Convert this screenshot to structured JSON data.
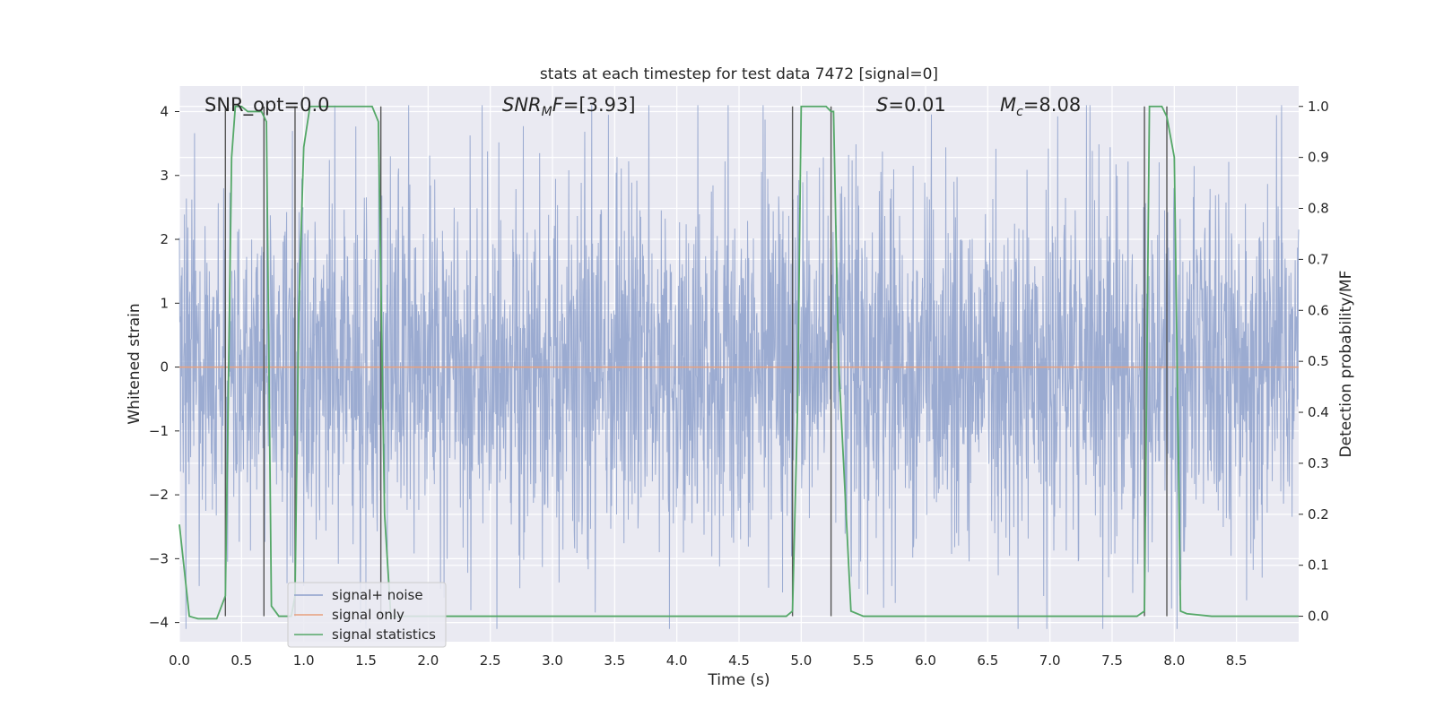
{
  "chart_data": {
    "type": "line",
    "title": "stats at each timestep for test data 7472 [signal=0]",
    "xlabel": "Time (s)",
    "ylabel_left": "Whitened strain",
    "ylabel_right": "Detection probability/MF",
    "xlim": [
      0.0,
      9.0
    ],
    "ylim_left": [
      -4.3,
      4.4
    ],
    "ylim_right": [
      -0.05,
      1.04
    ],
    "x_ticks": [
      "0.0",
      "0.5",
      "1.0",
      "1.5",
      "2.0",
      "2.5",
      "3.0",
      "3.5",
      "4.0",
      "4.5",
      "5.0",
      "5.5",
      "6.0",
      "6.5",
      "7.0",
      "7.5",
      "8.0",
      "8.5"
    ],
    "y_ticks_left": [
      "4",
      "3",
      "2",
      "1",
      "0",
      "−1",
      "−2",
      "−3",
      "−4"
    ],
    "y_ticks_right": [
      "1.0",
      "0.9",
      "0.8",
      "0.7",
      "0.6",
      "0.5",
      "0.4",
      "0.3",
      "0.2",
      "0.1",
      "0.0"
    ],
    "grid": true,
    "legend_position": "lower-left",
    "series": [
      {
        "name": "signal+ noise",
        "color": "#8da0cb",
        "kind": "noise",
        "axis": "left",
        "noise_amplitude": 1.6,
        "sample_rate": 320
      },
      {
        "name": "signal only",
        "color": "#e8a07d",
        "kind": "line",
        "axis": "left",
        "x": [
          0.0,
          9.0
        ],
        "y": [
          0.0,
          0.0
        ]
      },
      {
        "name": "signal statistics",
        "color": "#55a868",
        "kind": "line",
        "axis": "right",
        "x": [
          0.0,
          0.08,
          0.15,
          0.3,
          0.37,
          0.42,
          0.45,
          0.5,
          0.55,
          0.6,
          0.66,
          0.7,
          0.74,
          0.8,
          0.9,
          0.93,
          0.96,
          1.0,
          1.05,
          1.1,
          1.2,
          1.3,
          1.4,
          1.5,
          1.55,
          1.6,
          1.65,
          1.7,
          1.75,
          2.0,
          3.0,
          4.0,
          4.5,
          4.88,
          4.93,
          4.97,
          5.0,
          5.1,
          5.2,
          5.24,
          5.26,
          5.3,
          5.4,
          5.5,
          6.0,
          6.5,
          7.0,
          7.5,
          7.6,
          7.7,
          7.76,
          7.8,
          7.85,
          7.9,
          7.94,
          8.0,
          8.05,
          8.1,
          8.3,
          8.5,
          9.0
        ],
        "y": [
          0.18,
          0.0,
          -0.005,
          -0.005,
          0.04,
          0.9,
          1.0,
          1.0,
          0.99,
          0.99,
          0.99,
          0.97,
          0.02,
          0.0,
          0.0,
          0.04,
          0.6,
          0.92,
          1.0,
          1.0,
          1.0,
          1.0,
          1.0,
          1.0,
          1.0,
          0.97,
          0.2,
          0.0,
          0.0,
          0.0,
          0.0,
          0.0,
          0.0,
          0.0,
          0.01,
          0.4,
          1.0,
          1.0,
          1.0,
          0.99,
          0.99,
          0.5,
          0.01,
          0.0,
          0.0,
          0.0,
          0.0,
          0.0,
          0.0,
          0.0,
          0.01,
          1.0,
          1.0,
          1.0,
          0.98,
          0.9,
          0.01,
          0.005,
          0.0,
          0.0,
          0.0
        ]
      }
    ],
    "vertical_markers_x": [
      0.37,
      0.68,
      0.93,
      1.62,
      4.93,
      5.24,
      7.76,
      7.94
    ],
    "annotations": [
      {
        "id": "snr-opt",
        "text": "SNR_opt=0.0"
      },
      {
        "id": "snr-mf",
        "base": "SNR",
        "sub": "M",
        "tail": "F=[3.93]"
      },
      {
        "id": "s-value",
        "base": "S",
        "tail": "=0.01"
      },
      {
        "id": "mc-value",
        "base": "M",
        "sub": "c",
        "tail": "=8.08"
      }
    ]
  },
  "colors": {
    "axes_background": "#eaeaf2",
    "grid": "#ffffff",
    "marker_line": "#555555"
  }
}
